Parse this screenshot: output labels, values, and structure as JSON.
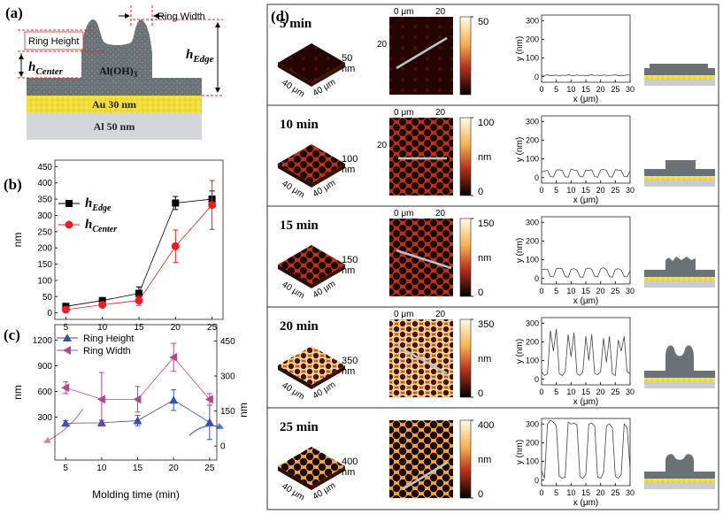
{
  "panel_labels": [
    "(a)",
    "(b)",
    "(c)",
    "(d)"
  ],
  "schematic": {
    "ring_width": "Ring Width",
    "ring_height": "Ring Height",
    "h_center": {
      "main": "h",
      "sub": "Center"
    },
    "h_edge": {
      "main": "h",
      "sub": "Edge"
    },
    "aloh": {
      "main": "Al(OH)",
      "sub": "3"
    },
    "au": "Au 30 nm",
    "al": "Al 50 nm"
  },
  "chart_data": [
    {
      "type": "line",
      "ylabel": "nm",
      "x": [
        5,
        10,
        15,
        20,
        25
      ],
      "xlim": [
        3.5,
        26.5
      ],
      "xticks": [
        5,
        10,
        15,
        20,
        25
      ],
      "ylim": [
        -20,
        470
      ],
      "yticks": [
        0,
        50,
        100,
        150,
        200,
        250,
        300,
        350,
        400,
        450
      ],
      "series": [
        {
          "name": {
            "main": "h",
            "sub": "Edge"
          },
          "color": "#000000",
          "marker": "square",
          "values": [
            20,
            38,
            60,
            338,
            350
          ],
          "errors": [
            8,
            6,
            20,
            20,
            25
          ]
        },
        {
          "name": {
            "main": "h",
            "sub": "Center"
          },
          "color": "#ee1c1c",
          "marker": "circle",
          "values": [
            10,
            25,
            38,
            205,
            332
          ],
          "errors": [
            5,
            6,
            15,
            50,
            75
          ]
        }
      ]
    },
    {
      "type": "line",
      "xlabel": "Molding time (min)",
      "ylabel": "nm",
      "y2label": "nm",
      "x": [
        5,
        10,
        15,
        20,
        25
      ],
      "xlim": [
        3.5,
        26
      ],
      "xticks": [
        5,
        10,
        15,
        20,
        25
      ],
      "ylim": [
        -200,
        1380
      ],
      "yticks": [
        300,
        600,
        900,
        1200
      ],
      "y2lim": [
        -60,
        520
      ],
      "y2ticks": [
        0,
        150,
        300,
        450
      ],
      "series": [
        {
          "name": "Ring Height",
          "color": "#3a4fb0",
          "marker": "triangle-up",
          "values": [
            230,
            235,
            260,
            500,
            240
          ],
          "errors": [
            30,
            30,
            60,
            120,
            200
          ]
        },
        {
          "name": "Ring Width",
          "color": "#b8458a",
          "marker": "triangle-left",
          "axis": "y2",
          "values": [
            250,
            200,
            200,
            380,
            200
          ],
          "errors": [
            25,
            115,
            55,
            60,
            25
          ]
        }
      ]
    },
    {
      "type": "line",
      "xlabel": "x (μm)",
      "ylabel": "y (nm)",
      "xlim": [
        0,
        30
      ],
      "xticks": [
        0,
        5,
        10,
        15,
        20,
        25,
        30
      ],
      "ylim": [
        -30,
        330
      ],
      "yticks": [
        0,
        100,
        200,
        300
      ],
      "color": "#444444",
      "x": [
        0,
        1,
        2,
        3,
        4,
        5,
        6,
        7,
        8,
        9,
        10,
        11,
        12,
        13,
        14,
        15,
        16,
        17,
        18,
        19,
        20,
        21,
        22,
        23,
        24,
        25,
        26,
        27,
        28,
        29,
        30
      ],
      "values": [
        8,
        6,
        10,
        5,
        7,
        9,
        4,
        8,
        6,
        10,
        7,
        5,
        9,
        6,
        8,
        5,
        7,
        10,
        6,
        8,
        5,
        9,
        7,
        6,
        8,
        10,
        5,
        7,
        6,
        9,
        8
      ]
    },
    {
      "type": "line",
      "xlabel": "x (μm)",
      "ylabel": "y (nm)",
      "xlim": [
        0,
        30
      ],
      "xticks": [
        0,
        5,
        10,
        15,
        20,
        25,
        30
      ],
      "ylim": [
        -30,
        330
      ],
      "yticks": [
        0,
        100,
        200,
        300
      ],
      "color": "#444444",
      "x": [
        0,
        1,
        2,
        3,
        4,
        5,
        6,
        7,
        8,
        9,
        10,
        11,
        12,
        13,
        14,
        15,
        16,
        17,
        18,
        19,
        20,
        21,
        22,
        23,
        24,
        25,
        26,
        27,
        28,
        29,
        30
      ],
      "values": [
        30,
        35,
        38,
        5,
        3,
        40,
        42,
        38,
        4,
        2,
        45,
        40,
        38,
        6,
        3,
        40,
        38,
        42,
        5,
        2,
        40,
        44,
        38,
        4,
        3,
        42,
        40,
        38,
        5,
        4,
        35
      ]
    },
    {
      "type": "line",
      "xlabel": "x (μm)",
      "ylabel": "y (nm)",
      "xlim": [
        0,
        30
      ],
      "xticks": [
        0,
        5,
        10,
        15,
        20,
        25,
        30
      ],
      "ylim": [
        -30,
        330
      ],
      "yticks": [
        0,
        100,
        200,
        300
      ],
      "color": "#444444",
      "x": [
        0,
        1,
        2,
        3,
        4,
        5,
        6,
        7,
        8,
        9,
        10,
        11,
        12,
        13,
        14,
        15,
        16,
        17,
        18,
        19,
        20,
        21,
        22,
        23,
        24,
        25,
        26,
        27,
        28,
        29,
        30
      ],
      "values": [
        45,
        50,
        48,
        10,
        8,
        52,
        55,
        50,
        10,
        6,
        48,
        52,
        45,
        8,
        6,
        50,
        55,
        48,
        12,
        8,
        50,
        58,
        45,
        10,
        6,
        48,
        52,
        44,
        10,
        8,
        40
      ]
    },
    {
      "type": "line",
      "xlabel": "x (μm)",
      "ylabel": "y (nm)",
      "xlim": [
        0,
        30
      ],
      "xticks": [
        0,
        5,
        10,
        15,
        20,
        25,
        30
      ],
      "ylim": [
        -30,
        330
      ],
      "yticks": [
        0,
        100,
        200,
        300
      ],
      "color": "#444444",
      "x": [
        0,
        1,
        2,
        3,
        4,
        5,
        6,
        7,
        8,
        9,
        10,
        11,
        12,
        13,
        14,
        15,
        16,
        17,
        18,
        19,
        20,
        21,
        22,
        23,
        24,
        25,
        26,
        27,
        28,
        29,
        30
      ],
      "values": [
        40,
        20,
        30,
        260,
        150,
        270,
        30,
        20,
        40,
        240,
        120,
        250,
        30,
        20,
        40,
        230,
        100,
        240,
        30,
        25,
        40,
        220,
        90,
        230,
        30,
        20,
        210,
        150,
        230,
        40,
        30
      ]
    },
    {
      "type": "line",
      "xlabel": "x (μm)",
      "ylabel": "y (nm)",
      "xlim": [
        0,
        30
      ],
      "xticks": [
        0,
        5,
        10,
        15,
        20,
        25,
        30
      ],
      "ylim": [
        -30,
        330
      ],
      "yticks": [
        0,
        100,
        200,
        300
      ],
      "color": "#444444",
      "x": [
        0,
        1,
        2,
        3,
        4,
        5,
        6,
        7,
        8,
        9,
        10,
        11,
        12,
        13,
        14,
        15,
        16,
        17,
        18,
        19,
        20,
        21,
        22,
        23,
        24,
        25,
        26,
        27,
        28,
        29,
        30
      ],
      "values": [
        50,
        10,
        300,
        320,
        310,
        290,
        20,
        10,
        15,
        310,
        300,
        305,
        295,
        20,
        10,
        30,
        300,
        305,
        290,
        15,
        10,
        40,
        290,
        300,
        280,
        20,
        10,
        30,
        300,
        280,
        60
      ]
    }
  ],
  "afm_rows": [
    {
      "time": "5 min",
      "z_label": [
        "50",
        "nm"
      ],
      "axis_labels": [
        "40 μm",
        "40 μm"
      ],
      "scan_top": [
        "0 μm",
        "20"
      ],
      "scan_left": "20",
      "colorbar": {
        "lim": [
          0,
          50
        ],
        "ticks": [
          50
        ]
      }
    },
    {
      "time": "10 min",
      "z_label": [
        "100",
        "nm"
      ],
      "axis_labels": [
        "40 μm",
        "40 μm"
      ],
      "scan_top": [
        "0 μm",
        "20"
      ],
      "scan_left": "20",
      "colorbar": {
        "lim": [
          0,
          100
        ],
        "ticks": [
          0,
          100
        ],
        "label": "nm"
      }
    },
    {
      "time": "15 min",
      "z_label": [
        "150",
        "nm"
      ],
      "axis_labels": [
        "40 μm",
        "40 μm"
      ],
      "scan_top": [
        "0 μm",
        "20"
      ],
      "colorbar": {
        "lim": [
          0,
          150
        ],
        "ticks": [
          0,
          150
        ],
        "label": "nm"
      }
    },
    {
      "time": "20 min",
      "z_label": [
        "350",
        "nm"
      ],
      "axis_labels": [
        "40 μm",
        "40 μm"
      ],
      "scan_top": [
        "0 μm",
        "20"
      ],
      "colorbar": {
        "lim": [
          0,
          350
        ],
        "ticks": [
          0,
          350
        ],
        "label": "nm"
      }
    },
    {
      "time": "25 min",
      "z_label": [
        "400",
        "nm"
      ],
      "axis_labels": [
        "40 μm",
        "40 μm"
      ],
      "colorbar": {
        "lim": [
          0,
          400
        ],
        "ticks": [
          0,
          400
        ],
        "label": "nm"
      }
    }
  ]
}
